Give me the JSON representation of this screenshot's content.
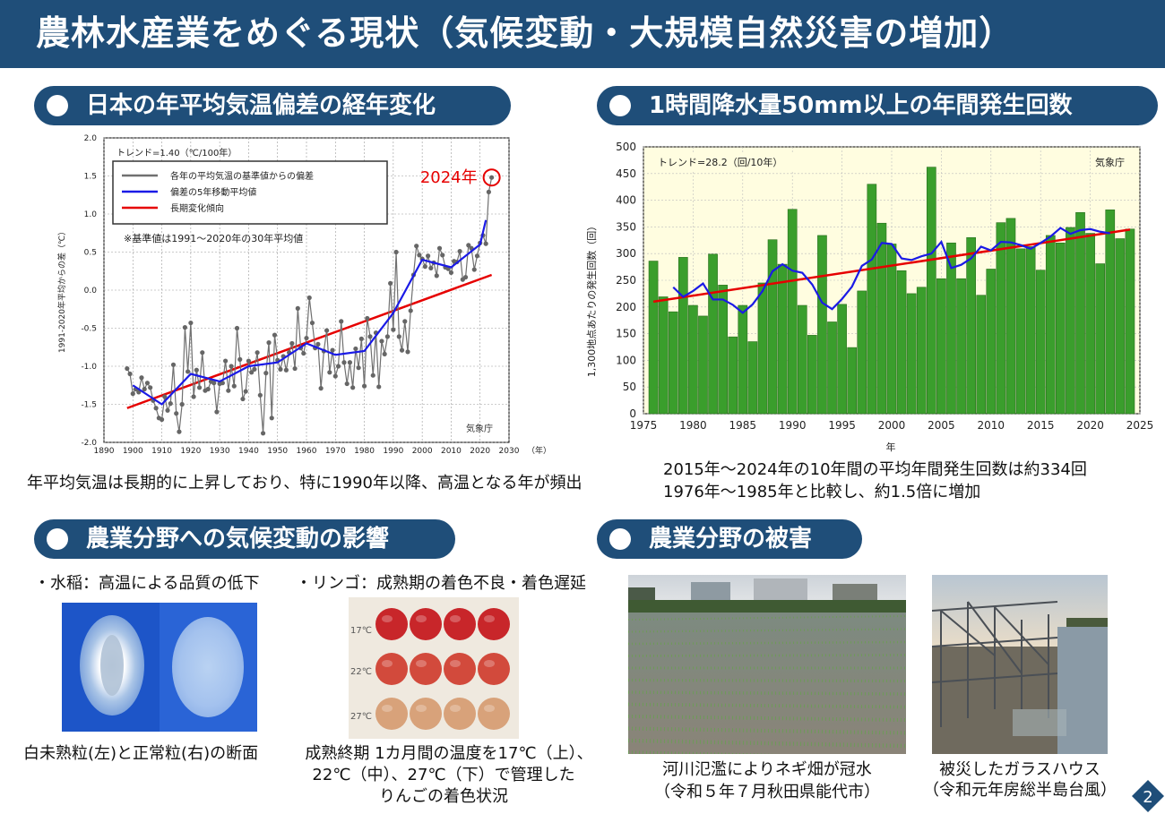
{
  "header": {
    "title": "農林水産業をめぐる現状（気候変動・大規模自然災害の増加）"
  },
  "sections": {
    "temp": {
      "title": "日本の年平均気温偏差の経年変化",
      "caption": "年平均気温は長期的に上昇しており、特に1990年以降、高温となる年が頻出"
    },
    "rain": {
      "title": "1時間降水量50mm以上の年間発生回数",
      "caption_line1": "2015年～2024年の10年間の平均年間発生回数は約334回",
      "caption_line2": "1976年～1985年と比較し、約1.5倍に増加"
    },
    "impact": {
      "title": "農業分野への気候変動の影響"
    },
    "damage": {
      "title": "農業分野の被害"
    }
  },
  "impact": {
    "rice_heading": "・水稲：高温による品質の低下",
    "rice_caption": "白未熟粒(左)と正常粒(右)の断面",
    "apple_heading": "・リンゴ：成熟期の着色不良・着色遅延",
    "apple_caption_line1": "成熟終期 1カ月間の温度を17℃（上）、",
    "apple_caption_line2": "22℃（中）、27℃（下）で管理した",
    "apple_caption_line3": "りんごの着色状況",
    "apple_row_labels": [
      "17℃",
      "22℃",
      "27℃"
    ]
  },
  "damage": {
    "flood_caption_line1": "河川氾濫によりネギ畑が冠水",
    "flood_caption_line2": "（令和５年７月秋田県能代市）",
    "greenhouse_caption_line1": "被災したガラスハウス",
    "greenhouse_caption_line2": "（令和元年房総半島台風）"
  },
  "page_number": "2",
  "colors": {
    "navy": "#1f4e79",
    "annual": "#707070",
    "moving_avg": "#1a1ae6",
    "trend": "#e60000",
    "bar": "#3a9e2c",
    "plot_bg": "#fffde0"
  },
  "chart_data": [
    {
      "type": "line",
      "trend_label": "トレンド=1.40（℃/100年）",
      "ylabel": "1991-2020年平均からの差（℃）",
      "xunit": "（年）",
      "source": "気象庁",
      "note": "※基準値は1991～2020年の30年平均値",
      "highlight_label": "2024年",
      "xlim": [
        1890,
        2030
      ],
      "ylim": [
        -2.0,
        2.0
      ],
      "xticks": [
        "1890",
        "1900",
        "1910",
        "1920",
        "1930",
        "1940",
        "1950",
        "1960",
        "1970",
        "1980",
        "1990",
        "2000",
        "2010",
        "2020",
        "2030"
      ],
      "yticks": [
        "2.0",
        "1.5",
        "1.0",
        "0.5",
        "0.0",
        "-0.5",
        "-1.0",
        "-1.5",
        "-2.0"
      ],
      "grid": true,
      "legend_position": "top-left",
      "series": [
        {
          "name": "各年の平均気温の基準値からの偏差",
          "x": [
            1898,
            1899,
            1900,
            1901,
            1902,
            1903,
            1904,
            1905,
            1906,
            1907,
            1908,
            1909,
            1910,
            1911,
            1912,
            1913,
            1914,
            1915,
            1916,
            1917,
            1918,
            1919,
            1920,
            1921,
            1922,
            1923,
            1924,
            1925,
            1926,
            1927,
            1928,
            1929,
            1930,
            1931,
            1932,
            1933,
            1934,
            1935,
            1936,
            1937,
            1938,
            1939,
            1940,
            1941,
            1942,
            1943,
            1944,
            1945,
            1946,
            1947,
            1948,
            1949,
            1950,
            1951,
            1952,
            1953,
            1954,
            1955,
            1956,
            1957,
            1958,
            1959,
            1960,
            1961,
            1962,
            1963,
            1964,
            1965,
            1966,
            1967,
            1968,
            1969,
            1970,
            1971,
            1972,
            1973,
            1974,
            1975,
            1976,
            1977,
            1978,
            1979,
            1980,
            1981,
            1982,
            1983,
            1984,
            1985,
            1986,
            1987,
            1988,
            1989,
            1990,
            1991,
            1992,
            1993,
            1994,
            1995,
            1996,
            1997,
            1998,
            1999,
            2000,
            2001,
            2002,
            2003,
            2004,
            2005,
            2006,
            2007,
            2008,
            2009,
            2010,
            2011,
            2012,
            2013,
            2014,
            2015,
            2016,
            2017,
            2018,
            2019,
            2020,
            2021,
            2022,
            2023,
            2024
          ],
          "values": [
            -1.03,
            -1.1,
            -1.36,
            -1.3,
            -1.34,
            -1.15,
            -1.3,
            -1.22,
            -1.28,
            -1.45,
            -1.55,
            -1.68,
            -1.7,
            -1.4,
            -1.58,
            -1.49,
            -0.98,
            -1.62,
            -1.86,
            -1.5,
            -0.49,
            -1.07,
            -0.43,
            -1.4,
            -1.05,
            -1.28,
            -0.82,
            -1.32,
            -1.3,
            -1.2,
            -1.22,
            -1.6,
            -1.23,
            -1.22,
            -0.93,
            -1.32,
            -1.0,
            -1.26,
            -0.5,
            -0.91,
            -1.43,
            -1.33,
            -0.93,
            -1.08,
            -1.04,
            -0.82,
            -1.38,
            -1.88,
            -1.09,
            -0.69,
            -1.68,
            -0.59,
            -0.92,
            -1.04,
            -0.87,
            -1.05,
            -0.82,
            -0.7,
            -1.03,
            -0.24,
            -0.76,
            -0.83,
            -0.63,
            -0.1,
            -0.43,
            -0.76,
            -0.71,
            -1.29,
            -0.8,
            -0.53,
            -1.08,
            -0.79,
            -1.13,
            -1.0,
            -0.41,
            -0.95,
            -1.23,
            -0.95,
            -1.28,
            -0.77,
            -1.02,
            -0.64,
            -1.26,
            -0.37,
            -0.61,
            -1.12,
            -0.56,
            -1.27,
            -0.67,
            -0.84,
            -0.61,
            0.09,
            -0.52,
            0.5,
            -0.61,
            -0.79,
            -0.41,
            -0.81,
            -0.27,
            0.2,
            0.58,
            0.46,
            0.41,
            0.31,
            0.45,
            0.29,
            0.36,
            0.19,
            0.55,
            0.46,
            0.3,
            0.28,
            0.23,
            0.38,
            0.37,
            0.51,
            0.14,
            0.17,
            0.59,
            0.55,
            0.27,
            0.45,
            0.62,
            0.72,
            0.61,
            1.29,
            1.48
          ]
        },
        {
          "name": "偏差の5年移動平均値",
          "x": [
            1900,
            1910,
            1920,
            1930,
            1940,
            1950,
            1960,
            1970,
            1980,
            1990,
            2000,
            2010,
            2020,
            2022
          ],
          "values": [
            -1.25,
            -1.5,
            -1.1,
            -1.2,
            -1.0,
            -0.95,
            -0.7,
            -0.85,
            -0.8,
            -0.3,
            0.4,
            0.3,
            0.6,
            0.92
          ]
        },
        {
          "name": "長期変化傾向",
          "x": [
            1898,
            2024
          ],
          "values": [
            -1.55,
            0.2
          ]
        }
      ]
    },
    {
      "type": "bar",
      "trend_label": "トレンド=28.2（回/10年）",
      "source": "気象庁",
      "ylabel": "1,300地点あたりの発生回数（回）",
      "xlabel": "年",
      "xlim": [
        1975,
        2025
      ],
      "ylim": [
        0,
        500
      ],
      "xticks": [
        "1975",
        "1980",
        "1985",
        "1990",
        "1995",
        "2000",
        "2005",
        "2010",
        "2015",
        "2020",
        "2025"
      ],
      "yticks": [
        "0",
        "50",
        "100",
        "150",
        "200",
        "250",
        "300",
        "350",
        "400",
        "450",
        "500"
      ],
      "grid": true,
      "categories": [
        1976,
        1977,
        1978,
        1979,
        1980,
        1981,
        1982,
        1983,
        1984,
        1985,
        1986,
        1987,
        1988,
        1989,
        1990,
        1991,
        1992,
        1993,
        1994,
        1995,
        1996,
        1997,
        1998,
        1999,
        2000,
        2001,
        2002,
        2003,
        2004,
        2005,
        2006,
        2007,
        2008,
        2009,
        2010,
        2011,
        2012,
        2013,
        2014,
        2015,
        2016,
        2017,
        2018,
        2019,
        2020,
        2021,
        2022,
        2023,
        2024
      ],
      "values": [
        286,
        219,
        191,
        293,
        203,
        183,
        299,
        241,
        144,
        203,
        135,
        245,
        326,
        280,
        383,
        203,
        147,
        334,
        172,
        205,
        124,
        230,
        430,
        357,
        318,
        268,
        225,
        237,
        462,
        253,
        320,
        253,
        330,
        222,
        271,
        358,
        366,
        309,
        313,
        269,
        334,
        320,
        349,
        377,
        338,
        281,
        382,
        328,
        346
      ],
      "moving_avg": [
        null,
        null,
        237,
        219,
        230,
        244,
        214,
        214,
        204,
        189,
        205,
        230,
        267,
        280,
        268,
        264,
        242,
        208,
        196,
        215,
        238,
        277,
        289,
        320,
        318,
        291,
        288,
        295,
        300,
        322,
        273,
        279,
        291,
        313,
        306,
        322,
        321,
        316,
        309,
        320,
        332,
        348,
        337,
        344,
        346,
        341,
        338,
        null,
        null
      ],
      "trend": [
        210,
        345
      ]
    }
  ]
}
